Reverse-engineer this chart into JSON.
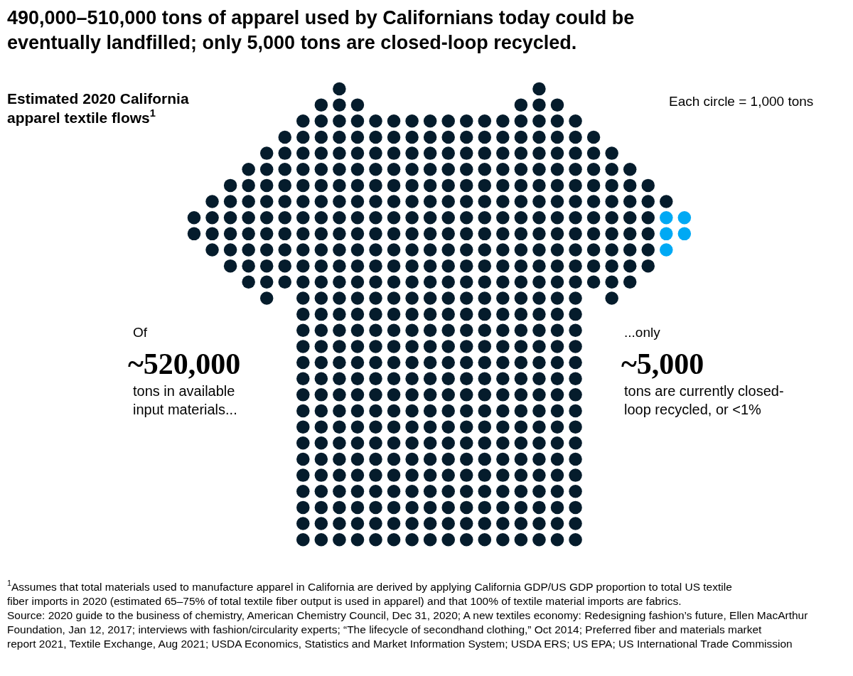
{
  "chart_data": {
    "type": "other",
    "title": "490,000–510,000 tons of apparel used by Californians today could be eventually landfilled; only 5,000 tons are closed-loop recycled.",
    "subtitle": "Estimated 2020 California apparel textile flows$^{1}$",
    "values": [
      520000,
      5000
    ],
    "value_labels": [
      "~520,000",
      "~5,000"
    ],
    "colors": [
      "#051c2c",
      "#00a9f4"
    ],
    "annotations": [
      "Each circle = 1,000 tons",
      "Of",
      "tons in available input materials...",
      "...only",
      "tons are currently closed-loop recycled, or <1%",
      "$^{1}$Assumes that total materials used to manufacture apparel in California are derived by applying California GDP/US GDP proportion to total US textile fiber imports in 2020 (estimated 65–75% of total textile fiber output is used in apparel) and that 100% of textile material imports are fabrics.",
      "Source: 2020 guide to the business of chemistry, American Chemistry Council, Dec 31, 2020; A new textiles economy: Redesigning fashion’s future, Ellen MacArthur Foundation, Jan 12, 2017; interviews with fashion/circularity experts; “The lifecycle of secondhand clothing,” Oct 2014; Preferred fiber and materials market report 2021, Textile Exchange, Aug 2021; USDA Economics, Statistics and Market Information System; USDA ERS; US EPA; US International Trade Commission"
    ]
  }
}
